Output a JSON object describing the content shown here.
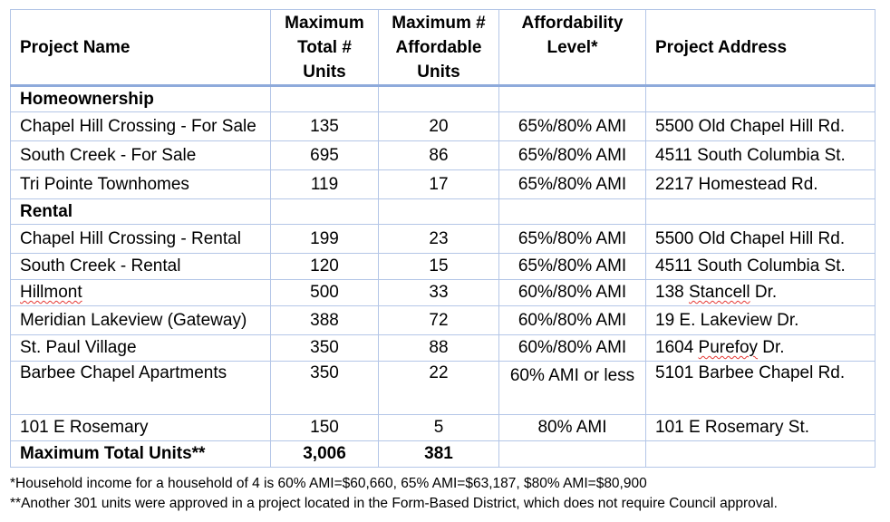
{
  "headers": {
    "project_name": "Project Name",
    "max_total_line1": "Maximum",
    "max_total_line2": "Total #",
    "max_total_line3": "Units",
    "max_aff_line1": "Maximum #",
    "max_aff_line2": "Affordable",
    "max_aff_line3": "Units",
    "aff_level_line1": "Affordability",
    "aff_level_line2": "Level*",
    "address": "Project Address"
  },
  "sections": {
    "homeownership": "Homeownership",
    "rental": "Rental"
  },
  "homeownership_rows": [
    {
      "name": "Chapel Hill Crossing - For Sale",
      "total": "135",
      "affordable": "20",
      "level": "65%/80% AMI",
      "address": "5500 Old Chapel Hill Rd."
    },
    {
      "name": "South Creek - For Sale",
      "total": "695",
      "affordable": "86",
      "level": "65%/80% AMI",
      "address": "4511 South Columbia St."
    },
    {
      "name": "Tri Pointe Townhomes",
      "total": "119",
      "affordable": "17",
      "level": "65%/80% AMI",
      "address": "2217 Homestead Rd."
    }
  ],
  "rental_rows": [
    {
      "name": "Chapel Hill Crossing - Rental",
      "total": "199",
      "affordable": "23",
      "level": "65%/80% AMI",
      "address": "5500 Old Chapel Hill Rd."
    },
    {
      "name": "South Creek - Rental",
      "total": "120",
      "affordable": "15",
      "level": "65%/80% AMI",
      "address": "4511 South Columbia St."
    },
    {
      "name": "Hillmont",
      "total": "500",
      "affordable": "33",
      "level": "60%/80% AMI",
      "address_pre": "138 ",
      "address_squiggle": "Stancell",
      "address_post": " Dr."
    },
    {
      "name": "Meridian Lakeview (Gateway)",
      "total": "388",
      "affordable": "72",
      "level": "60%/80% AMI",
      "address": "19 E. Lakeview Dr."
    },
    {
      "name": "St. Paul Village",
      "total": "350",
      "affordable": "88",
      "level": "60%/80% AMI",
      "address_pre": "1604 ",
      "address_squiggle": "Purefoy",
      "address_post": " Dr."
    },
    {
      "name": "Barbee Chapel Apartments",
      "total": "350",
      "affordable": "22",
      "level": "60% AMI or less",
      "address": "5101 Barbee Chapel Rd."
    },
    {
      "name": "101 E Rosemary",
      "total": "150",
      "affordable": "5",
      "level": "80% AMI",
      "address": "101 E Rosemary St."
    }
  ],
  "totals": {
    "label": "Maximum Total Units**",
    "total": "3,006",
    "affordable": "381"
  },
  "footnotes": {
    "note1": "*Household income for a household of 4 is 60% AMI=$60,660, 65% AMI=$63,187, $80% AMI=$80,900",
    "note2": "**Another 301 units were approved in a project located in the Form-Based District, which does not require Council approval."
  }
}
